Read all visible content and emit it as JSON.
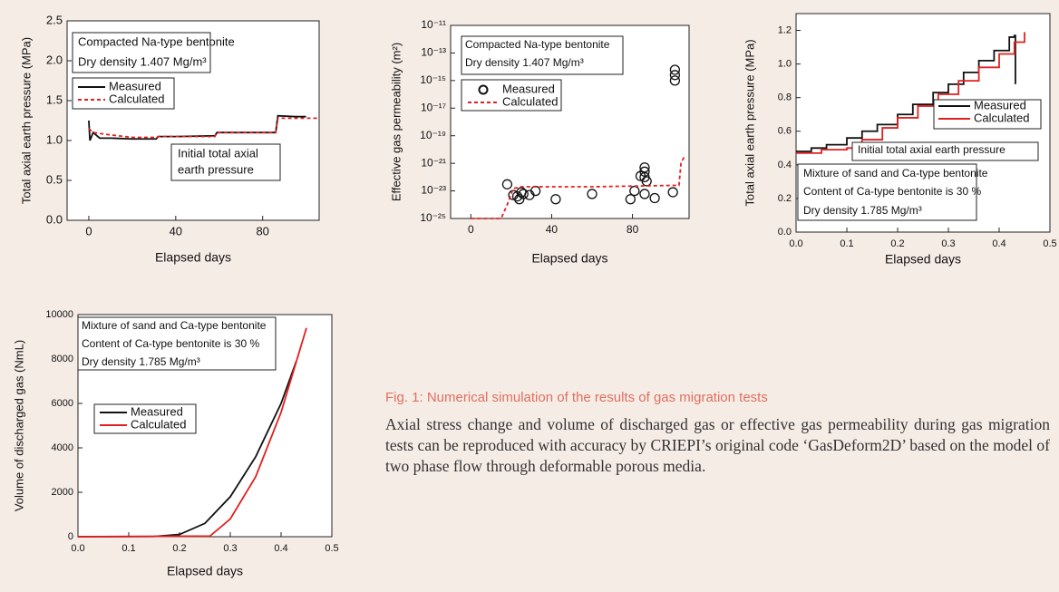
{
  "chart_data": [
    {
      "type": "line",
      "xlabel": "Elapsed days",
      "ylabel": "Total axial earth pressure (MPa)",
      "xlim": [
        -10,
        106
      ],
      "xticks": [
        0,
        40,
        80
      ],
      "ylim": [
        0,
        2.5
      ],
      "yticks": [
        {
          "value": 0,
          "label": "0.0"
        },
        0.5,
        {
          "value": 1,
          "label": "1.0"
        },
        1.5,
        {
          "value": 2,
          "label": "2.0"
        },
        2.5
      ],
      "annotations": [
        "Compacted Na-type bentonite",
        "Dry density 1.407 Mg/m³",
        "Initial total axial",
        "earth pressure"
      ],
      "series": [
        {
          "name": "Measured",
          "color": "#111111",
          "line_style": "solid",
          "x": [
            0,
            0.5,
            2,
            5,
            10,
            20,
            31,
            32,
            40,
            58,
            59,
            70,
            86,
            87,
            95,
            100
          ],
          "values": [
            1.25,
            1.0,
            1.1,
            1.03,
            1.03,
            1.02,
            1.02,
            1.05,
            1.05,
            1.06,
            1.1,
            1.1,
            1.1,
            1.31,
            1.3,
            1.3
          ]
        },
        {
          "name": "Calculated",
          "color": "#e02020",
          "line_style": "dashed",
          "x": [
            0,
            2,
            10,
            20,
            31,
            32,
            58,
            59,
            86,
            87,
            105
          ],
          "values": [
            1.15,
            1.1,
            1.07,
            1.04,
            1.04,
            1.05,
            1.05,
            1.1,
            1.1,
            1.28,
            1.28
          ]
        }
      ]
    },
    {
      "type": "line",
      "xlabel": "Elapsed days",
      "ylabel": "Effective gas permeability (m²)",
      "log_y": true,
      "xlim": [
        -10,
        108
      ],
      "xticks": [
        0,
        40,
        80
      ],
      "ylim": [
        1e-25,
        1e-11
      ],
      "yticks": [
        {
          "value": 1e-25,
          "label": "10⁻²⁵"
        },
        {
          "value": 1e-23,
          "label": "10⁻²³"
        },
        {
          "value": 1e-21,
          "label": "10⁻²¹"
        },
        {
          "value": 1e-19,
          "label": "10⁻¹⁹"
        },
        {
          "value": 1e-17,
          "label": "10⁻¹⁷"
        },
        {
          "value": 1e-15,
          "label": "10⁻¹⁵"
        },
        {
          "value": 1e-13,
          "label": "10⁻¹³"
        },
        {
          "value": 1e-11,
          "label": "10⁻¹¹"
        }
      ],
      "annotations": [
        "Compacted Na-type bentonite",
        "Dry density 1.407 Mg/m³"
      ],
      "series": [
        {
          "name": "Measured",
          "color": "#111111",
          "marker": "circle",
          "x": [
            18,
            21,
            23,
            24,
            25,
            26,
            29,
            32,
            42,
            60,
            79,
            81,
            84,
            86,
            86,
            86,
            87,
            86,
            91,
            100,
            101,
            101,
            101
          ],
          "values": [
            3e-23,
            5e-24,
            4e-24,
            2.5e-24,
            8e-24,
            6e-24,
            5e-24,
            1e-23,
            2.5e-24,
            6e-24,
            2.5e-24,
            1e-23,
            1.2e-22,
            5e-22,
            2.5e-22,
            1e-22,
            5e-23,
            6e-24,
            3e-24,
            8e-24,
            6e-15,
            2.5e-15,
            1e-15
          ]
        },
        {
          "name": "Calculated",
          "color": "#e02020",
          "line_style": "dashed",
          "x": [
            0,
            15,
            18,
            21,
            25,
            60,
            100,
            103,
            104,
            106
          ],
          "values": [
            1e-25,
            1e-25,
            1e-24,
            1.5e-23,
            2e-23,
            2e-23,
            2.5e-23,
            2.5e-23,
            1e-21,
            4e-21
          ]
        }
      ]
    },
    {
      "type": "line",
      "xlabel": "Elapsed days",
      "ylabel": "Total axial earth pressure (MPa)",
      "xlim": [
        0,
        0.5
      ],
      "xticks": [
        {
          "value": 0,
          "label": "0.0"
        },
        0.1,
        0.2,
        0.3,
        0.4,
        0.5
      ],
      "ylim": [
        0,
        1.3
      ],
      "yticks": [
        {
          "value": 0,
          "label": "0.0"
        },
        0.2,
        0.4,
        0.6,
        0.8,
        {
          "value": 1,
          "label": "1.0"
        },
        1.2
      ],
      "annotations": [
        "Initial total axial earth pressure",
        "Mixture of sand and Ca-type bentonite",
        "Content of Ca-type bentonite is 30 %",
        "Dry density 1.785 Mg/m³"
      ],
      "series": [
        {
          "name": "Measured",
          "color": "#111111",
          "line_style": "step",
          "x": [
            0,
            0.03,
            0.06,
            0.1,
            0.13,
            0.16,
            0.2,
            0.23,
            0.27,
            0.3,
            0.33,
            0.36,
            0.39,
            0.42,
            0.43,
            0.432
          ],
          "values": [
            0.48,
            0.5,
            0.52,
            0.56,
            0.6,
            0.64,
            0.7,
            0.76,
            0.83,
            0.88,
            0.95,
            1.02,
            1.08,
            1.16,
            1.17,
            0.88
          ]
        },
        {
          "name": "Calculated",
          "color": "#e02020",
          "line_style": "step",
          "x": [
            0,
            0.05,
            0.1,
            0.13,
            0.17,
            0.2,
            0.24,
            0.28,
            0.32,
            0.36,
            0.4,
            0.43,
            0.45
          ],
          "values": [
            0.47,
            0.49,
            0.5,
            0.55,
            0.62,
            0.68,
            0.75,
            0.82,
            0.9,
            0.98,
            1.06,
            1.13,
            1.19
          ]
        }
      ]
    },
    {
      "type": "line",
      "xlabel": "Elapsed days",
      "ylabel": "Volume of discharged gas (NmL)",
      "xlim": [
        0,
        0.5
      ],
      "xticks": [
        {
          "value": 0,
          "label": "0.0"
        },
        0.1,
        0.2,
        0.3,
        0.4,
        0.5
      ],
      "ylim": [
        0,
        10000
      ],
      "yticks": [
        0,
        2000,
        4000,
        6000,
        8000,
        10000
      ],
      "annotations": [
        "Mixture of sand and Ca-type bentonite",
        "Content of Ca-type bentonite is 30 %",
        "Dry density 1.785 Mg/m³"
      ],
      "series": [
        {
          "name": "Measured",
          "color": "#111111",
          "line_style": "solid",
          "x": [
            0,
            0.15,
            0.2,
            0.25,
            0.3,
            0.35,
            0.4,
            0.43
          ],
          "values": [
            0,
            10,
            100,
            600,
            1800,
            3600,
            6000,
            7900
          ]
        },
        {
          "name": "Calculated",
          "color": "#e02020",
          "line_style": "solid",
          "x": [
            0,
            0.26,
            0.3,
            0.35,
            0.4,
            0.45
          ],
          "values": [
            0,
            30,
            800,
            2700,
            5600,
            9400
          ]
        }
      ]
    }
  ],
  "caption": {
    "title": "Fig. 1: Numerical simulation of the results of gas migration tests",
    "text": "Axial stress change and volume of discharged gas or effective gas permeability during gas migration tests can be reproduced with accuracy by CRIEPI’s original code ‘GasDeform2D’ based on the model of two phase flow through deformable porous media."
  }
}
